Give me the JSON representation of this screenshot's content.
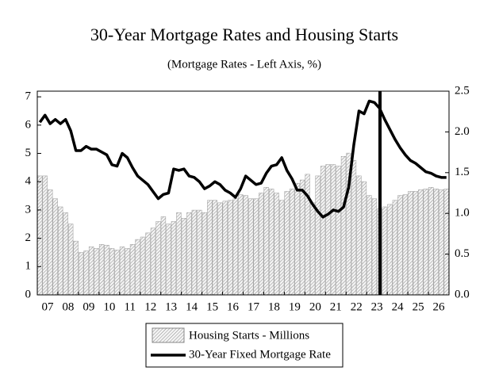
{
  "chart_data": {
    "type": "bar-line",
    "title": "30-Year Mortgage Rates and Housing Starts",
    "subtitle": "(Mortgage Rates - Left Axis, %)",
    "categories": [
      null,
      "07",
      null,
      null,
      null,
      "08",
      null,
      null,
      null,
      "09",
      null,
      null,
      null,
      "10",
      null,
      null,
      null,
      "11",
      null,
      null,
      null,
      "12",
      null,
      null,
      null,
      "13",
      null,
      null,
      null,
      "14",
      null,
      null,
      null,
      "15",
      null,
      null,
      null,
      "16",
      null,
      null,
      null,
      "17",
      null,
      null,
      null,
      "18",
      null,
      null,
      null,
      "19",
      null,
      null,
      null,
      "20",
      null,
      null,
      null,
      "21",
      null,
      null,
      null,
      "22",
      null,
      null,
      null,
      "23",
      null,
      null,
      null,
      "24",
      null,
      null,
      null,
      "25",
      null,
      null,
      null,
      "26",
      null,
      null
    ],
    "series": [
      {
        "name": "Housing Starts - Millions",
        "type": "bar",
        "axis": "y2",
        "color": "#9a9a9a",
        "values": [
          1.46,
          1.46,
          1.29,
          1.18,
          1.08,
          1.01,
          0.87,
          0.66,
          0.52,
          0.54,
          0.59,
          0.57,
          0.62,
          0.61,
          0.57,
          0.55,
          0.59,
          0.57,
          0.62,
          0.68,
          0.71,
          0.76,
          0.82,
          0.9,
          0.96,
          0.87,
          0.9,
          1.01,
          0.94,
          1.01,
          1.04,
          1.04,
          1.01,
          1.16,
          1.16,
          1.13,
          1.15,
          1.16,
          1.18,
          1.23,
          1.22,
          1.18,
          1.18,
          1.25,
          1.32,
          1.3,
          1.25,
          1.16,
          1.27,
          1.3,
          1.37,
          1.41,
          1.48,
          1.13,
          1.46,
          1.58,
          1.6,
          1.6,
          1.58,
          1.7,
          1.74,
          1.65,
          1.46,
          1.39,
          1.22,
          1.18,
          1.06,
          1.08,
          1.11,
          1.16,
          1.22,
          1.23,
          1.27,
          1.27,
          1.29,
          1.3,
          1.32,
          1.3,
          1.29,
          1.3
        ]
      },
      {
        "name": "30-Year Fixed Mortgage Rate",
        "type": "line",
        "color": "#000000",
        "values": [
          6.1,
          6.35,
          6.05,
          6.2,
          6.05,
          6.2,
          5.8,
          5.1,
          5.1,
          5.25,
          5.15,
          5.15,
          5.05,
          4.95,
          4.6,
          4.55,
          5.0,
          4.85,
          4.5,
          4.2,
          4.05,
          3.9,
          3.65,
          3.4,
          3.55,
          3.6,
          4.45,
          4.4,
          4.45,
          4.2,
          4.15,
          4.0,
          3.75,
          3.85,
          4.0,
          3.9,
          3.7,
          3.6,
          3.45,
          3.75,
          4.2,
          4.05,
          3.9,
          3.95,
          4.3,
          4.55,
          4.6,
          4.85,
          4.4,
          4.1,
          3.7,
          3.7,
          3.5,
          3.2,
          2.95,
          2.75,
          2.85,
          3.0,
          2.95,
          3.1,
          3.8,
          5.3,
          6.5,
          6.4,
          6.85,
          6.8,
          6.6,
          6.2,
          5.85,
          5.5,
          5.2,
          4.95,
          4.75,
          4.65,
          4.5,
          4.35,
          4.3,
          4.2,
          4.15,
          4.15
        ]
      }
    ],
    "ylim": [
      0,
      7.2
    ],
    "yticks": [
      0,
      1,
      2,
      3,
      4,
      5,
      6,
      7
    ],
    "y2lim": [
      0,
      2.5
    ],
    "y2ticks": [
      {
        "value": 0,
        "label": "0.0"
      },
      0.5,
      {
        "value": 1,
        "label": "1.0"
      },
      1.5,
      {
        "value": 2,
        "label": "2.0"
      },
      2.5
    ]
  }
}
